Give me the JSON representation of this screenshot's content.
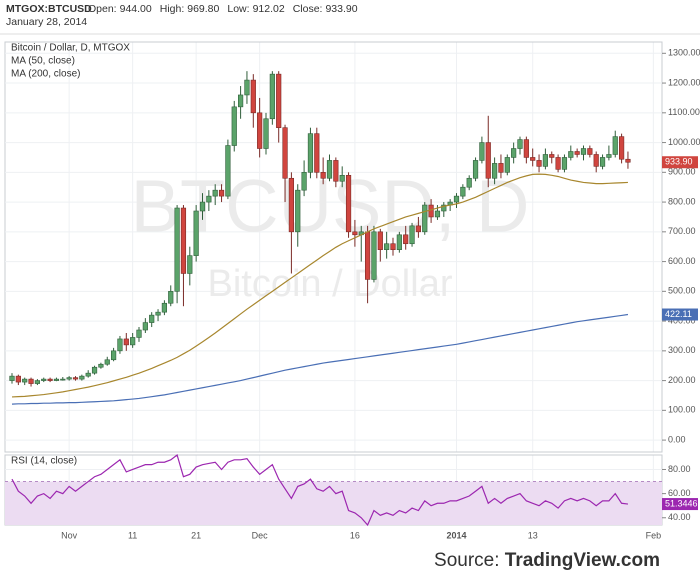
{
  "header": {
    "symbol": "MTGOX:BTCUSD",
    "fields": [
      {
        "label": "Open:",
        "value": "944.00"
      },
      {
        "label": "High:",
        "value": "969.80"
      },
      {
        "label": "Low:",
        "value": "912.02"
      },
      {
        "label": "Close:",
        "value": "933.90"
      }
    ],
    "date": "January 28, 2014"
  },
  "footer": {
    "label": "Source:",
    "brand": "TradingView.com"
  },
  "chart_data": [
    {
      "type": "candlestick",
      "title": "Bitcoin / Dollar, D, MTGOX",
      "watermark": [
        "BTCUSD, D",
        "Bitcoin / Dollar"
      ],
      "up_color": "#5ba36a",
      "down_color": "#d0453f",
      "grid": true,
      "categories": [
        null,
        null,
        null,
        null,
        null,
        null,
        null,
        null,
        null,
        "Nov",
        null,
        null,
        null,
        null,
        null,
        null,
        null,
        null,
        null,
        "11",
        null,
        null,
        null,
        null,
        null,
        null,
        null,
        null,
        null,
        "21",
        null,
        null,
        null,
        null,
        null,
        null,
        null,
        null,
        null,
        "Dec",
        null,
        null,
        null,
        null,
        null,
        null,
        null,
        null,
        null,
        null,
        null,
        null,
        null,
        null,
        "16",
        null,
        null,
        null,
        null,
        null,
        null,
        null,
        null,
        null,
        null,
        null,
        null,
        null,
        null,
        null,
        "2014",
        null,
        null,
        null,
        null,
        null,
        null,
        null,
        null,
        null,
        null,
        null,
        "13",
        null,
        null,
        null,
        null,
        null,
        null,
        null,
        null,
        null,
        null,
        null,
        null,
        null,
        null,
        null,
        null,
        null,
        null,
        "Feb"
      ],
      "open": [
        200,
        215,
        195,
        205,
        190,
        200,
        205,
        200,
        205,
        205,
        210,
        205,
        215,
        225,
        245,
        255,
        270,
        300,
        340,
        320,
        345,
        370,
        395,
        420,
        430,
        460,
        500,
        780,
        560,
        620,
        770,
        800,
        820,
        840,
        820,
        990,
        1120,
        1160,
        1210,
        1100,
        980,
        1080,
        1230,
        1050,
        880,
        700,
        840,
        900,
        1030,
        900,
        880,
        940,
        870,
        890,
        700,
        690,
        700,
        540,
        700,
        640,
        660,
        640,
        690,
        660,
        720,
        700,
        790,
        750,
        770,
        790,
        800,
        820,
        850,
        880,
        940,
        1000,
        880,
        930,
        900,
        950,
        980,
        1010,
        950,
        940,
        920,
        960,
        950,
        910,
        950,
        970,
        960,
        980,
        960,
        920,
        950,
        960,
        1020,
        944,
        null,
        null,
        null,
        null
      ],
      "high": [
        225,
        220,
        210,
        210,
        205,
        210,
        210,
        210,
        212,
        215,
        215,
        220,
        235,
        250,
        260,
        280,
        310,
        350,
        360,
        360,
        380,
        410,
        430,
        440,
        470,
        520,
        790,
        790,
        650,
        790,
        830,
        840,
        860,
        860,
        1010,
        1140,
        1190,
        1240,
        1230,
        1150,
        1100,
        1240,
        1240,
        1060,
        900,
        860,
        940,
        1050,
        1050,
        950,
        960,
        950,
        920,
        900,
        740,
        720,
        720,
        720,
        710,
        700,
        680,
        700,
        720,
        730,
        750,
        800,
        810,
        790,
        800,
        810,
        830,
        860,
        890,
        950,
        1020,
        1090,
        950,
        960,
        960,
        1000,
        1020,
        1020,
        980,
        960,
        980,
        970,
        960,
        960,
        990,
        980,
        990,
        990,
        970,
        960,
        990,
        1040,
        1030,
        969.8,
        null,
        null,
        null,
        null
      ],
      "low": [
        190,
        185,
        185,
        180,
        185,
        195,
        195,
        198,
        200,
        200,
        200,
        200,
        210,
        220,
        240,
        250,
        265,
        290,
        300,
        310,
        330,
        360,
        380,
        400,
        420,
        450,
        460,
        450,
        520,
        600,
        740,
        770,
        790,
        800,
        810,
        970,
        1080,
        1130,
        1050,
        950,
        960,
        1060,
        1000,
        800,
        560,
        650,
        820,
        880,
        880,
        860,
        870,
        850,
        850,
        680,
        650,
        600,
        460,
        530,
        600,
        610,
        620,
        630,
        640,
        650,
        680,
        690,
        730,
        740,
        750,
        770,
        780,
        810,
        840,
        870,
        930,
        850,
        860,
        880,
        890,
        930,
        960,
        930,
        920,
        900,
        910,
        930,
        900,
        900,
        940,
        950,
        940,
        950,
        900,
        910,
        940,
        950,
        930,
        912.02,
        null,
        null,
        null,
        null
      ],
      "close": [
        215,
        195,
        205,
        190,
        200,
        205,
        200,
        205,
        205,
        210,
        205,
        215,
        225,
        245,
        255,
        270,
        300,
        340,
        320,
        345,
        370,
        395,
        420,
        430,
        460,
        500,
        780,
        560,
        620,
        770,
        800,
        820,
        840,
        820,
        990,
        1120,
        1160,
        1210,
        1100,
        980,
        1080,
        1230,
        1050,
        880,
        700,
        840,
        900,
        1030,
        900,
        880,
        940,
        870,
        890,
        700,
        690,
        700,
        540,
        700,
        640,
        660,
        640,
        690,
        660,
        720,
        700,
        790,
        750,
        770,
        790,
        800,
        820,
        850,
        880,
        940,
        1000,
        880,
        930,
        900,
        950,
        980,
        1010,
        950,
        940,
        920,
        960,
        950,
        910,
        950,
        970,
        960,
        980,
        960,
        920,
        950,
        960,
        1020,
        944,
        933.9,
        null,
        null,
        null,
        null
      ],
      "series": [
        {
          "name": "MA (50, close)",
          "color": "#a8872e",
          "values": [
            145,
            146,
            147,
            149,
            151,
            153,
            156,
            159,
            162,
            166,
            170,
            174,
            178,
            183,
            188,
            193,
            199,
            205,
            211,
            218,
            225,
            233,
            241,
            250,
            259,
            268,
            278,
            290,
            302,
            316,
            330,
            345,
            360,
            376,
            392,
            408,
            424,
            440,
            455,
            470,
            485,
            500,
            515,
            530,
            545,
            560,
            575,
            590,
            605,
            620,
            634,
            648,
            660,
            670,
            680,
            690,
            700,
            710,
            718,
            726,
            734,
            742,
            750,
            756,
            762,
            768,
            774,
            780,
            786,
            790,
            794,
            800,
            808,
            816,
            826,
            836,
            846,
            856,
            866,
            874,
            882,
            888,
            893,
            894,
            893,
            890,
            886,
            880,
            874,
            870,
            866,
            864,
            862,
            862,
            863,
            864,
            865,
            866,
            null,
            null,
            null,
            null
          ]
        },
        {
          "name": "MA (200, close)",
          "color": "#4a6fb5",
          "values": [
            121,
            122,
            122,
            123,
            123,
            124,
            124,
            125,
            125,
            126,
            126,
            127,
            128,
            129,
            130,
            131,
            132,
            134,
            136,
            138,
            140,
            143,
            146,
            149,
            152,
            156,
            160,
            164,
            168,
            172,
            176,
            180,
            184,
            188,
            192,
            196,
            200,
            205,
            210,
            215,
            220,
            225,
            230,
            235,
            239,
            243,
            247,
            251,
            255,
            259,
            262,
            265,
            268,
            271,
            274,
            277,
            280,
            283,
            286,
            289,
            292,
            295,
            298,
            301,
            304,
            307,
            310,
            313,
            316,
            319,
            322,
            326,
            330,
            334,
            338,
            342,
            346,
            350,
            354,
            358,
            362,
            366,
            370,
            374,
            378,
            382,
            386,
            390,
            394,
            398,
            401,
            404,
            407,
            410,
            413,
            416,
            419,
            422.11,
            null,
            null,
            null,
            null
          ]
        }
      ],
      "price_tags": [
        {
          "value": 933.9,
          "label": "933.90",
          "color": "#d0453f"
        },
        {
          "value": 422.11,
          "label": "422.11",
          "color": "#4a6fb5"
        }
      ],
      "ylim": [
        -40,
        1338
      ],
      "yticks": [
        {
          "value": 0,
          "label": "0.00"
        },
        {
          "value": 100,
          "label": "100.00"
        },
        {
          "value": 200,
          "label": "200.00"
        },
        {
          "value": 300,
          "label": "300.00"
        },
        {
          "value": 400,
          "label": "400.00"
        },
        {
          "value": 500,
          "label": "500.00"
        },
        {
          "value": 600,
          "label": "600.00"
        },
        {
          "value": 700,
          "label": "700.00"
        },
        {
          "value": 800,
          "label": "800.00"
        },
        {
          "value": 900,
          "label": "900.00"
        },
        {
          "value": 1000,
          "label": "1000.00"
        },
        {
          "value": 1100,
          "label": "1100.00"
        },
        {
          "value": 1200,
          "label": "1200.00"
        },
        {
          "value": 1300,
          "label": "1300.00"
        }
      ]
    },
    {
      "type": "line",
      "band": [
        30,
        70
      ],
      "band_color": "#ecdcf2",
      "grid": true,
      "series": [
        {
          "name": "RSI (14, close)",
          "color": "#9c27b0",
          "values": [
            72,
            62,
            58,
            52,
            58,
            60,
            56,
            62,
            60,
            66,
            62,
            66,
            70,
            74,
            76,
            80,
            84,
            88,
            78,
            80,
            82,
            84,
            84,
            86,
            86,
            88,
            92,
            74,
            76,
            82,
            84,
            85,
            86,
            80,
            86,
            88,
            88,
            89,
            82,
            76,
            80,
            84,
            72,
            64,
            56,
            66,
            68,
            72,
            64,
            62,
            66,
            60,
            62,
            46,
            44,
            40,
            34,
            46,
            42,
            44,
            42,
            46,
            44,
            48,
            46,
            54,
            50,
            52,
            52,
            54,
            54,
            56,
            58,
            62,
            66,
            52,
            56,
            52,
            56,
            58,
            60,
            54,
            52,
            50,
            54,
            52,
            48,
            54,
            56,
            54,
            56,
            54,
            50,
            54,
            54,
            60,
            52,
            51.3446,
            null,
            null,
            null,
            null
          ]
        }
      ],
      "price_tags": [
        {
          "value": 51.3446,
          "label": "51.3446",
          "color": "#9c27b0"
        }
      ],
      "ylim": [
        34,
        92
      ],
      "yticks": [
        {
          "value": 40,
          "label": "40.00"
        },
        {
          "value": 60,
          "label": "60.00"
        },
        {
          "value": 80,
          "label": "80.00"
        }
      ]
    }
  ]
}
